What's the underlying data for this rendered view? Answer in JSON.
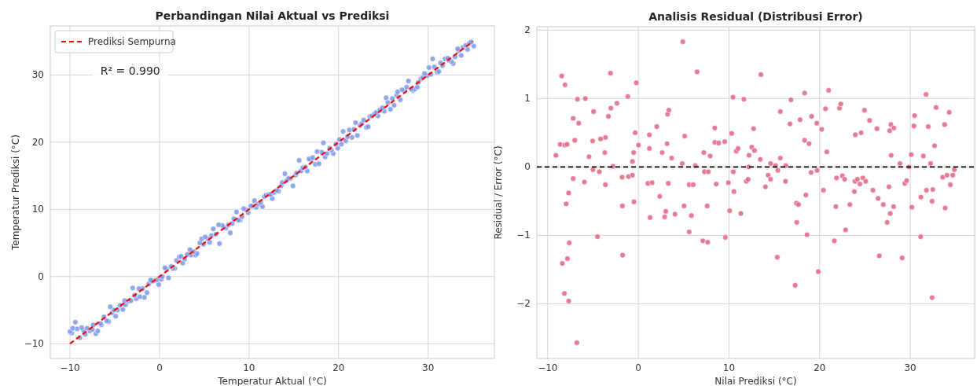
{
  "chart_data": [
    {
      "type": "scatter",
      "title": "Perbandingan Nilai Aktual vs Prediksi",
      "xlabel": "Temperatur Aktual (°C)",
      "ylabel": "Temperatur Prediksi (°C)",
      "xlim": [
        -12.2,
        37.4
      ],
      "ylim": [
        -12.2,
        37.3
      ],
      "xticks": [
        -10,
        0,
        10,
        20,
        30
      ],
      "yticks": [
        -10,
        0,
        10,
        20,
        30
      ],
      "grid": true,
      "legend": "top left",
      "marker": "circle",
      "annotations": [
        "R² = 0.990"
      ],
      "series": [
        {
          "color": "#7b95e9",
          "x": [
            -8.9,
            -8.3,
            -7.1,
            -9.8,
            -6.9,
            -7.8,
            -7.5,
            -10.0,
            -8.5,
            -9.2,
            -8.1,
            -9.7,
            -8.7,
            -6.5,
            -7.4,
            -6.6,
            -9.4,
            -5.7,
            -5.9,
            -6.2,
            -4.9,
            -5.3,
            -4.7,
            -5.1,
            -4.1,
            -5.5,
            -4.4,
            -3.8,
            -3.5,
            -3.2,
            -3.9,
            -2.6,
            -1.7,
            -2.2,
            -2.8,
            -1.4,
            -1.9,
            -2.3,
            -3.0,
            -0.1,
            -1.2,
            -0.8,
            -0.6,
            -0.3,
            -1.0,
            0.2,
            1.0,
            0.3,
            0.8,
            1.7,
            1.5,
            0.6,
            1.3,
            2.6,
            1.9,
            2.8,
            2.2,
            2.4,
            3.5,
            4.0,
            4.2,
            3.1,
            3.8,
            3.4,
            4.9,
            6.7,
            4.5,
            5.6,
            4.7,
            5.4,
            5.1,
            5.8,
            6.3,
            7.9,
            6.0,
            7.4,
            7.2,
            7.0,
            6.6,
            7.7,
            8.1,
            9.0,
            8.8,
            8.3,
            9.2,
            9.9,
            8.6,
            9.7,
            9.4,
            10.8,
            11.5,
            10.4,
            10.2,
            11.0,
            11.3,
            10.6,
            12.6,
            11.7,
            11.9,
            12.2,
            12.4,
            12.8,
            13.3,
            13.1,
            13.6,
            14.9,
            13.7,
            14.2,
            14.6,
            14.4,
            15.2,
            14.0,
            15.3,
            15.8,
            16.5,
            16.0,
            16.3,
            17.4,
            17.8,
            15.6,
            16.9,
            16.7,
            17.1,
            18.5,
            19.4,
            18.7,
            18.1,
            17.6,
            19.2,
            19.0,
            19.9,
            20.3,
            19.7,
            18.3,
            20.8,
            20.1,
            21.5,
            21.0,
            22.1,
            20.5,
            21.2,
            21.7,
            23.1,
            23.3,
            22.4,
            22.6,
            21.9,
            22.8,
            23.5,
            23.7,
            24.4,
            24.0,
            24.2,
            25.1,
            24.6,
            25.8,
            24.9,
            26.2,
            25.5,
            26.9,
            26.0,
            25.3,
            26.5,
            26.6,
            27.4,
            28.3,
            27.1,
            28.5,
            28.1,
            27.6,
            28.8,
            28.9,
            27.8,
            29.2,
            29.4,
            29.9,
            30.3,
            29.6,
            31.0,
            31.2,
            30.1,
            30.7,
            31.6,
            32.8,
            31.4,
            32.6,
            32.3,
            30.5,
            31.9,
            32.2,
            33.0,
            33.7,
            33.4,
            34.4,
            33.3,
            33.9,
            35.1,
            34.2,
            34.6,
            34.8
          ],
          "values": [
            -9.1,
            -8.6,
            -8.5,
            -8.4,
            -8.1,
            -8.1,
            -7.9,
            -8.2,
            -8.0,
            -7.8,
            -7.7,
            -7.7,
            -7.6,
            -7.2,
            -7.2,
            -7.0,
            -6.8,
            -6.7,
            -6.6,
            -6.0,
            -5.9,
            -5.4,
            -5.0,
            -5.0,
            -4.9,
            -4.5,
            -4.3,
            -4.2,
            -3.7,
            -3.6,
            -3.6,
            -3.3,
            -3.1,
            -3.0,
            -2.8,
            -2.4,
            -1.8,
            -1.8,
            -1.7,
            -1.2,
            -1.1,
            -0.7,
            -0.6,
            -0.5,
            -0.5,
            -0.4,
            -0.2,
            0.0,
            1.1,
            1.2,
            1.2,
            1.3,
            1.5,
            2.0,
            2.4,
            2.6,
            2.9,
            3.0,
            3.2,
            3.2,
            3.4,
            3.3,
            3.7,
            4.0,
            4.8,
            4.9,
            5.0,
            5.1,
            5.6,
            5.6,
            5.9,
            6.1,
            6.3,
            6.5,
            7.1,
            7.2,
            7.3,
            7.6,
            7.7,
            7.7,
            7.9,
            8.4,
            8.4,
            8.6,
            8.9,
            9.5,
            9.6,
            9.9,
            10.1,
            10.3,
            10.4,
            10.5,
            10.5,
            10.8,
            11.0,
            11.3,
            11.6,
            11.9,
            12.1,
            12.2,
            12.2,
            12.5,
            12.7,
            12.8,
            13.5,
            13.5,
            14.0,
            14.3,
            14.6,
            14.6,
            15.1,
            15.3,
            15.4,
            15.7,
            15.7,
            16.2,
            16.3,
            16.7,
            16.8,
            17.3,
            17.4,
            17.5,
            17.7,
            17.8,
            18.3,
            18.3,
            18.5,
            18.6,
            18.8,
            19.1,
            19.1,
            19.7,
            19.7,
            19.9,
            20.2,
            20.4,
            20.7,
            20.8,
            21.0,
            21.6,
            21.8,
            21.9,
            22.2,
            22.3,
            22.5,
            22.8,
            22.9,
            23.3,
            23.8,
            23.9,
            23.9,
            24.2,
            24.4,
            24.6,
            24.8,
            24.9,
            25.1,
            25.5,
            25.9,
            26.3,
            26.5,
            26.6,
            27.0,
            27.5,
            27.7,
            27.7,
            27.8,
            27.9,
            27.9,
            28.2,
            28.2,
            28.9,
            29.1,
            29.4,
            29.6,
            29.9,
            30.1,
            30.2,
            30.4,
            30.5,
            31.1,
            31.2,
            31.4,
            31.7,
            31.8,
            32.0,
            32.2,
            32.4,
            32.4,
            32.5,
            32.7,
            32.9,
            33.6,
            33.8,
            33.9,
            34.1,
            34.3,
            34.4,
            34.7,
            34.9
          ]
        },
        {
          "type": "line",
          "name": "Prediksi Sempurna",
          "color": "#ff0000",
          "line_style": "dashed",
          "marker": "none",
          "x": [
            -10,
            35
          ],
          "values": [
            -10,
            35
          ]
        }
      ]
    },
    {
      "type": "scatter",
      "title": "Analisis Residual (Distribusi Error)",
      "xlabel": "Nilai Prediksi (°C)",
      "ylabel": "Residual / Error (°C)",
      "xlim": [
        -11.2,
        37.1
      ],
      "ylim": [
        -2.8,
        2.05
      ],
      "xticks": [
        -10,
        0,
        10,
        20,
        30
      ],
      "yticks": [
        -2,
        -1,
        0,
        1,
        2
      ],
      "grid": true,
      "marker": "circle",
      "ref_lines": [
        {
          "axis": "y",
          "value": 0,
          "color": "#000000",
          "line_style": "dashed"
        }
      ],
      "series": [
        {
          "color": "#e0637f",
          "x": [
            -9.1,
            -8.63,
            -8.46,
            -8.39,
            -8.09,
            -8.12,
            -7.86,
            -8.16,
            -7.96,
            -7.82,
            -7.69,
            -7.69,
            -7.62,
            -7.19,
            -7.19,
            -7.02,
            -6.78,
            -6.72,
            -6.58,
            -5.95,
            -5.85,
            -5.44,
            -5.04,
            -5.01,
            -4.94,
            -4.51,
            -4.3,
            -4.17,
            -3.7,
            -3.63,
            -3.63,
            -3.3,
            -3.07,
            -3.03,
            -2.8,
            -2.36,
            -1.79,
            -1.76,
            -1.73,
            -1.16,
            -1.09,
            -0.65,
            -0.65,
            -0.52,
            -0.49,
            -0.35,
            -0.22,
            0.02,
            1.06,
            1.22,
            1.22,
            1.29,
            1.52,
            2.03,
            2.36,
            2.63,
            2.9,
            3.03,
            3.17,
            3.23,
            3.37,
            3.3,
            3.67,
            4.04,
            4.84,
            4.91,
            5.04,
            5.11,
            5.61,
            5.61,
            5.85,
            6.05,
            6.28,
            6.48,
            7.12,
            7.22,
            7.29,
            7.59,
            7.65,
            7.72,
            7.92,
            8.43,
            8.43,
            8.59,
            8.86,
            9.53,
            9.6,
            9.93,
            10.07,
            10.3,
            10.44,
            10.47,
            10.54,
            10.8,
            11.0,
            11.31,
            11.64,
            11.91,
            12.11,
            12.18,
            12.21,
            12.51,
            12.71,
            12.81,
            13.45,
            13.52,
            14.02,
            14.32,
            14.59,
            14.59,
            15.13,
            15.33,
            15.39,
            15.66,
            15.66,
            16.23,
            16.26,
            16.73,
            16.83,
            17.3,
            17.44,
            17.47,
            17.67,
            17.84,
            18.34,
            18.34,
            18.48,
            18.61,
            18.84,
            19.05,
            19.11,
            19.68,
            19.72,
            19.85,
            20.22,
            20.42,
            20.65,
            20.79,
            20.99,
            21.62,
            21.79,
            21.86,
            22.19,
            22.33,
            22.5,
            22.76,
            22.86,
            23.33,
            23.83,
            23.9,
            23.94,
            24.17,
            24.44,
            24.57,
            24.77,
            24.94,
            25.08,
            25.51,
            25.88,
            26.32,
            26.45,
            26.58,
            27.02,
            27.45,
            27.65,
            27.72,
            27.79,
            27.86,
            27.89,
            28.16,
            28.19,
            28.86,
            29.1,
            29.4,
            29.6,
            29.87,
            30.1,
            30.17,
            30.4,
            30.47,
            31.14,
            31.17,
            31.44,
            31.74,
            31.78,
            31.98,
            32.24,
            32.41,
            32.41,
            32.48,
            32.68,
            32.85,
            33.58,
            33.79,
            33.85,
            34.05,
            34.29,
            34.42,
            34.69,
            34.86
          ],
          "values": [
            0.17,
            0.33,
            1.33,
            -1.41,
            1.2,
            0.32,
            0.33,
            -1.85,
            -0.54,
            -1.34,
            -0.38,
            -1.96,
            -1.11,
            0.71,
            -0.17,
            0.39,
            -2.57,
            0.99,
            0.64,
            -0.22,
            1.0,
            0.15,
            0.38,
            -0.04,
            0.81,
            -1.02,
            -0.07,
            0.41,
            0.21,
            0.43,
            -0.26,
            0.74,
            1.37,
            0.86,
            0.01,
            0.93,
            -0.15,
            -0.57,
            -1.29,
            1.03,
            -0.14,
            -0.12,
            0.08,
            0.21,
            -0.51,
            0.5,
            1.23,
            0.32,
            -0.24,
            0.47,
            0.27,
            -0.74,
            -0.23,
            0.59,
            -0.43,
            0.21,
            -0.73,
            -0.65,
            0.34,
            0.77,
            0.83,
            -0.24,
            0.13,
            -0.69,
            0.05,
            1.83,
            -0.57,
            0.45,
            -0.95,
            -0.26,
            -0.71,
            -0.26,
            0.02,
            1.39,
            -1.08,
            0.21,
            -0.07,
            -0.57,
            -1.1,
            -0.07,
            0.16,
            0.57,
            0.36,
            -0.25,
            0.35,
            0.37,
            -1.03,
            -0.23,
            -0.64,
            0.49,
            1.02,
            -0.07,
            -0.36,
            0.23,
            0.27,
            -0.68,
            0.99,
            -0.21,
            -0.18,
            0.0,
            0.17,
            0.29,
            0.56,
            0.24,
            0.11,
            1.35,
            -0.29,
            -0.12,
            0.05,
            -0.18,
            0.02,
            -1.32,
            -0.05,
            0.13,
            0.81,
            -0.21,
            0.02,
            0.63,
            0.98,
            -1.73,
            -0.53,
            -0.81,
            -0.55,
            0.69,
            1.08,
            0.39,
            -0.41,
            -0.99,
            0.34,
            -0.08,
            0.74,
            0.64,
            -0.05,
            -1.53,
            0.55,
            -0.34,
            0.85,
            0.22,
            1.12,
            -1.08,
            -0.58,
            -0.16,
            0.86,
            0.92,
            -0.13,
            -0.18,
            -0.92,
            -0.55,
            -0.36,
            -0.21,
            0.47,
            -0.18,
            -0.25,
            0.5,
            -0.16,
            0.83,
            -0.21,
            0.68,
            -0.34,
            0.56,
            -0.46,
            -1.3,
            -0.55,
            -0.81,
            -0.29,
            0.53,
            -0.68,
            0.62,
            0.17,
            -0.58,
            0.57,
            0.05,
            -1.33,
            -0.24,
            -0.2,
            0.0,
            0.18,
            -0.59,
            0.6,
            0.75,
            -1.02,
            -0.44,
            0.16,
            1.06,
            -0.34,
            0.59,
            0.05,
            -1.91,
            -0.5,
            -0.33,
            0.31,
            0.87,
            -0.15,
            0.62,
            -0.6,
            -0.12,
            0.8,
            -0.26,
            -0.12,
            -0.04
          ]
        }
      ]
    }
  ]
}
